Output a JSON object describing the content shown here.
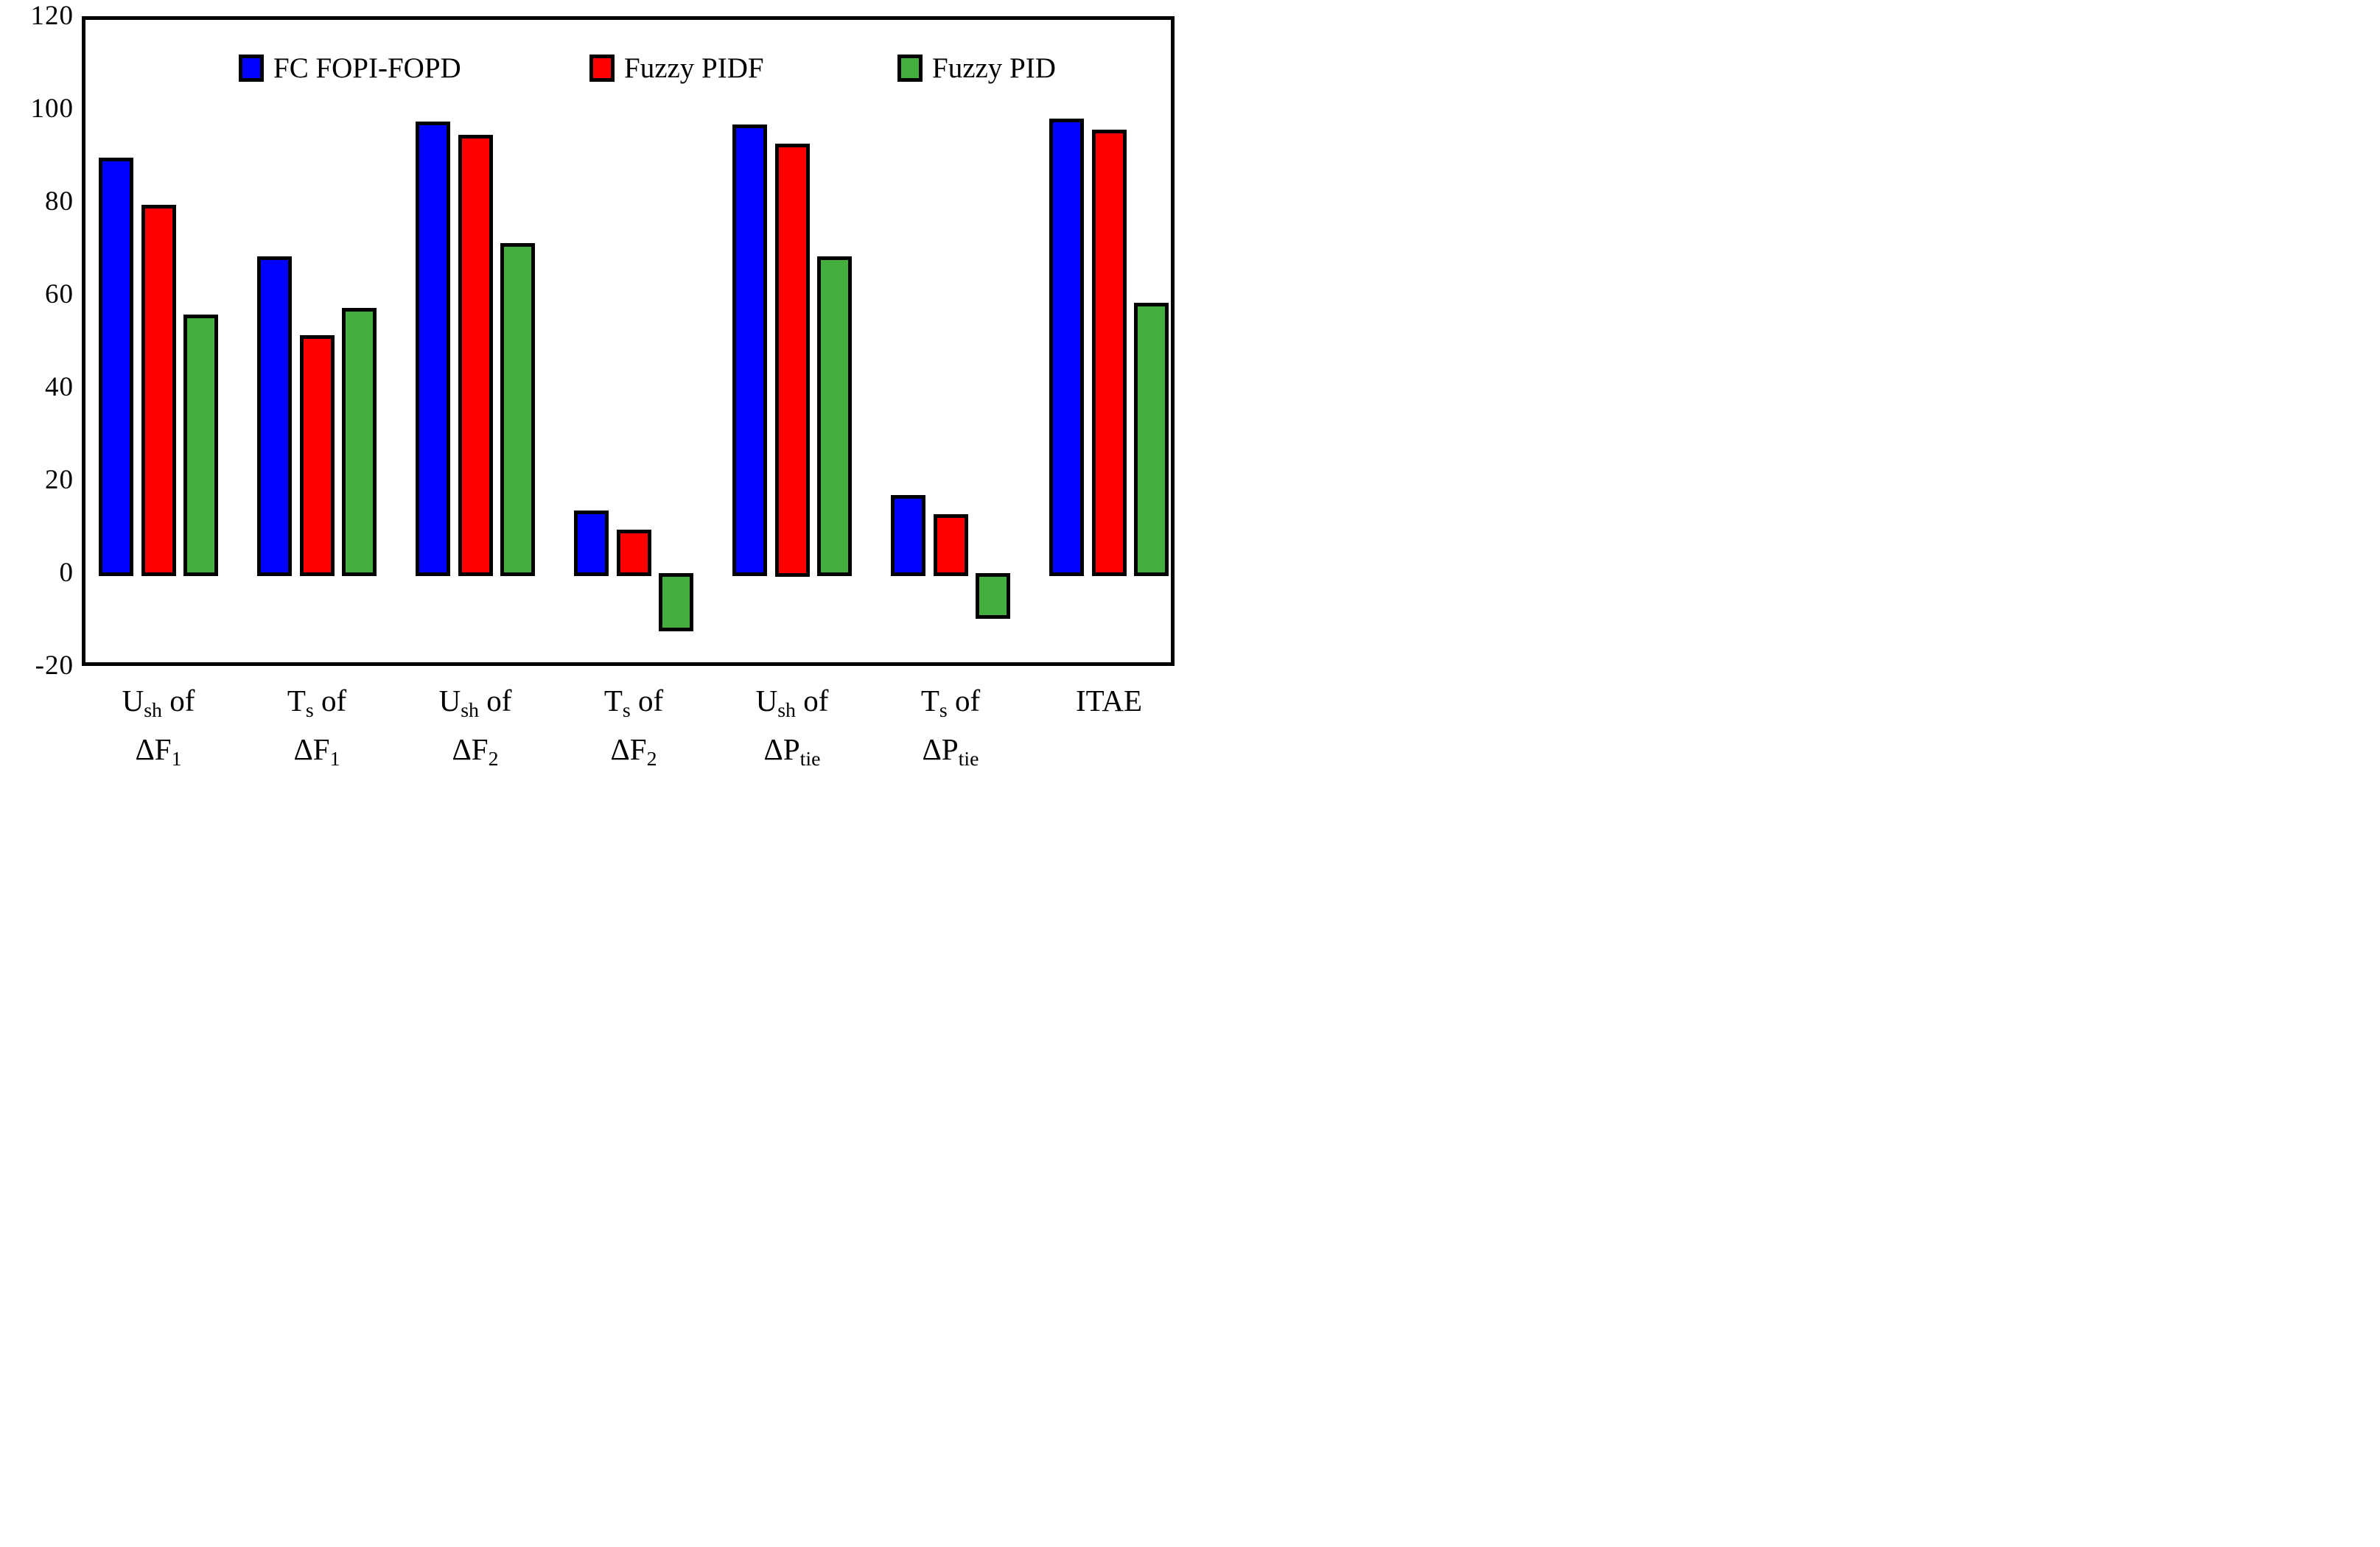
{
  "chart_data": {
    "type": "bar",
    "title": "",
    "xlabel": "",
    "ylabel": "",
    "ylim": [
      -20,
      120
    ],
    "grid": false,
    "legend_position": "top-inside",
    "background_color": "#ffffff",
    "axis_color": "#000000",
    "bar_border_color": "#000000",
    "yticks": [
      120,
      100,
      80,
      60,
      40,
      20,
      0,
      -20
    ],
    "categories": [
      {
        "lines": [
          "U_{sh} of",
          "ΔF_{1}"
        ]
      },
      {
        "lines": [
          "T_{s} of",
          "ΔF_{1}"
        ]
      },
      {
        "lines": [
          "U_{sh} of",
          "ΔF_{2}"
        ]
      },
      {
        "lines": [
          "T_{s} of",
          "ΔF_{2}"
        ]
      },
      {
        "lines": [
          "U_{sh} of",
          "ΔP_{tie}"
        ]
      },
      {
        "lines": [
          "T_{s} of",
          "ΔP_{tie}"
        ]
      },
      {
        "lines": [
          "ITAE"
        ]
      }
    ],
    "series": [
      {
        "name": "FC FOPI-FOPD",
        "color": "#0000ff",
        "values": [
          89.5,
          68.2,
          97.3,
          13.4,
          96.6,
          16.8,
          97.9
        ]
      },
      {
        "name": "Fuzzy PIDF",
        "color": "#ff0000",
        "values": [
          79.3,
          51.2,
          94.3,
          9.3,
          92.5,
          12.6,
          95.5
        ]
      },
      {
        "name": "Fuzzy PID",
        "color": "#44ae3e",
        "values": [
          55.7,
          57.1,
          71.0,
          -11.8,
          68.1,
          -9.1,
          58.1
        ]
      }
    ]
  }
}
